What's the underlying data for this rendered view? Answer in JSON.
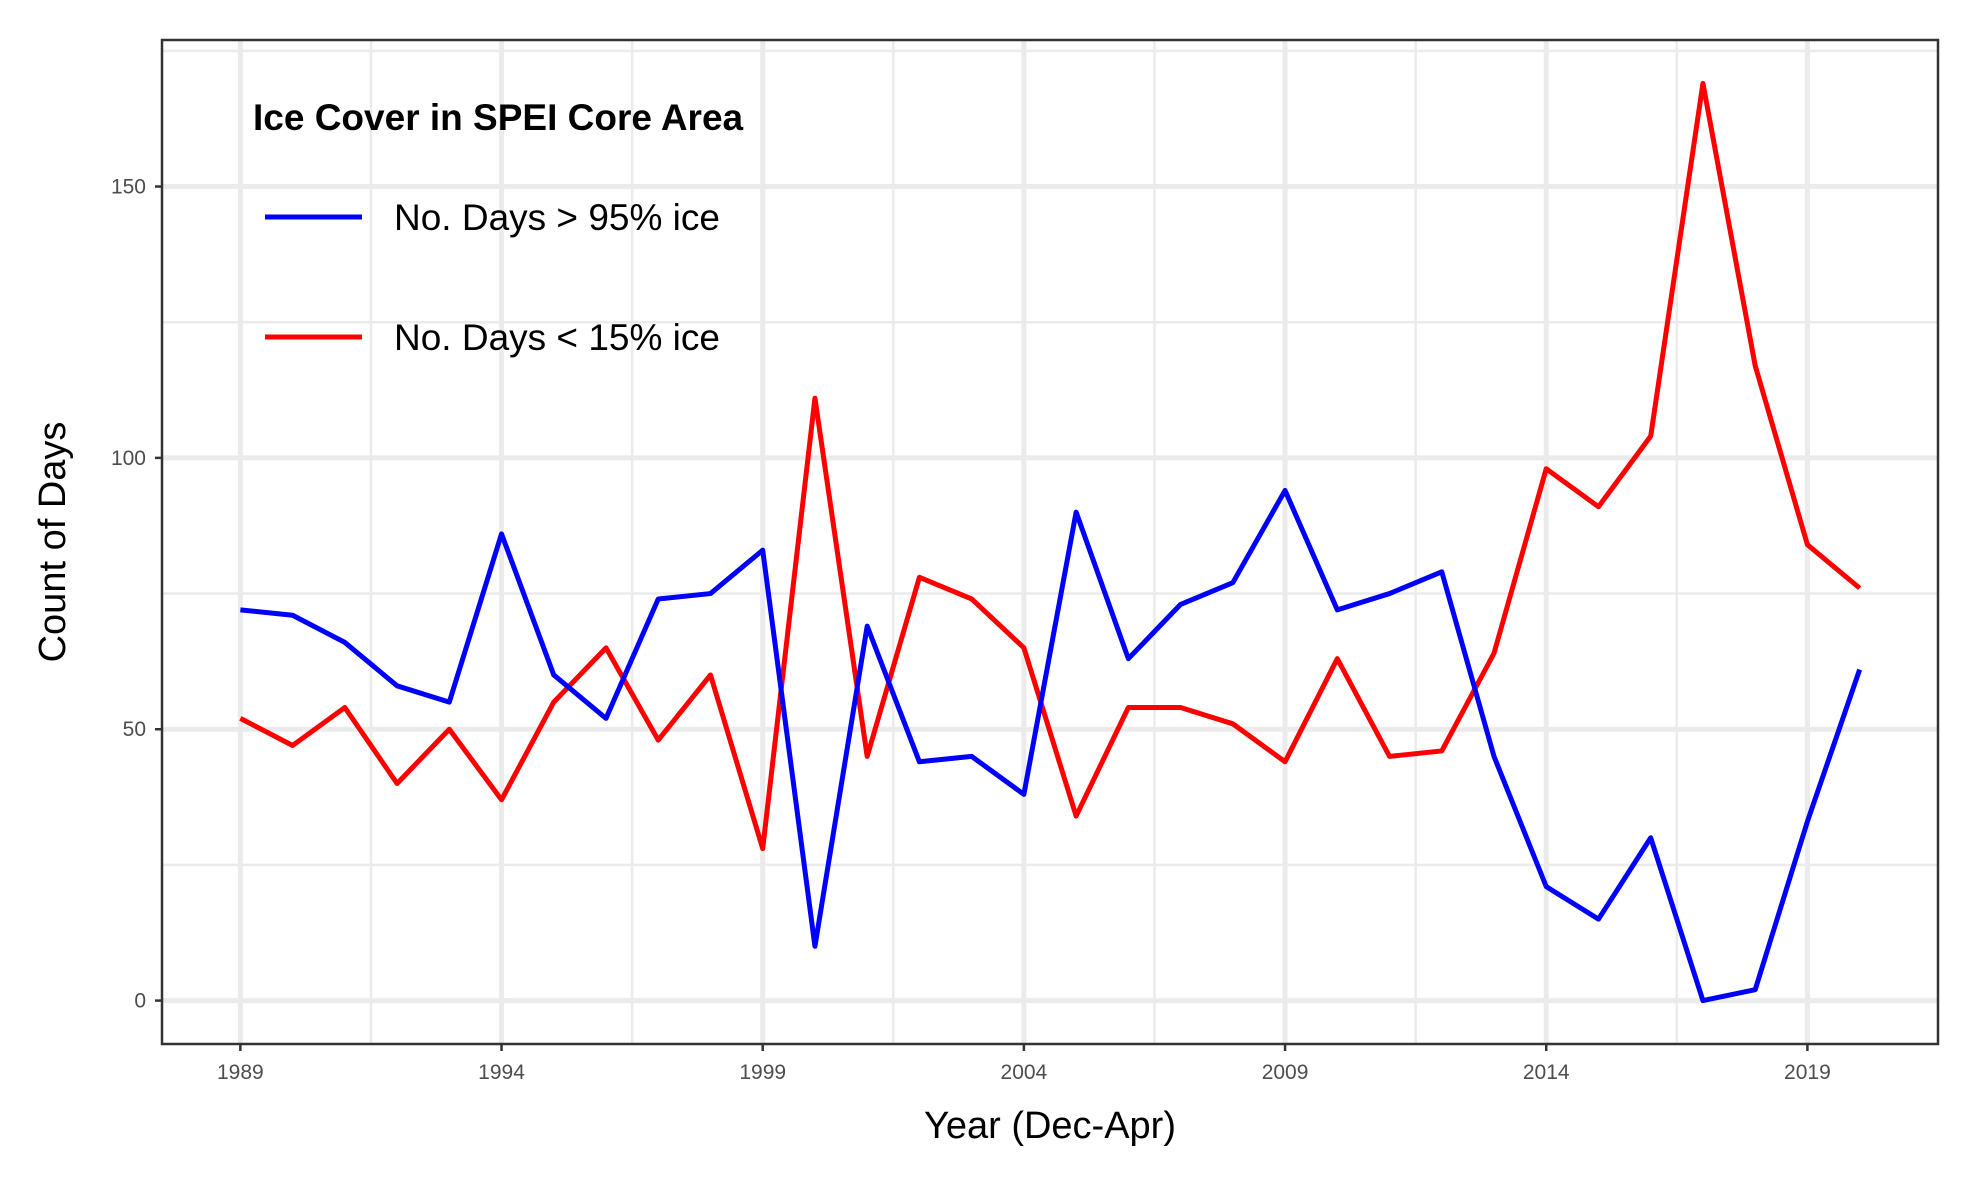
{
  "chart_data": {
    "type": "line",
    "title": "",
    "xlabel": "Year (Dec-Apr)",
    "ylabel": "Count of Days",
    "xlim": [
      1987.5,
      2021.5
    ],
    "ylim": [
      -8,
      177
    ],
    "x_ticks": [
      1989,
      1994,
      1999,
      2004,
      2009,
      2014,
      2019
    ],
    "x_tick_labels": [
      "1989",
      "1994",
      "1999",
      "2004",
      "2009",
      "2014",
      "2019"
    ],
    "y_ticks": [
      0,
      50,
      100,
      150
    ],
    "y_tick_labels": [
      "0",
      "50",
      "100",
      "150"
    ],
    "grid": true,
    "legend": {
      "title": "Ice Cover in SPEI Core Area",
      "position": "top-left"
    },
    "x": [
      1989,
      1990,
      1991,
      1992,
      1993,
      1994,
      1995,
      1996,
      1997,
      1998,
      1999,
      2000,
      2001,
      2002,
      2003,
      2004,
      2005,
      2006,
      2007,
      2008,
      2009,
      2010,
      2011,
      2012,
      2013,
      2014,
      2015,
      2016,
      2017,
      2018,
      2019,
      2020
    ],
    "series": [
      {
        "name": "No. Days > 95% ice",
        "color": "#0000ff",
        "values": [
          72,
          71,
          66,
          58,
          55,
          86,
          60,
          52,
          74,
          75,
          83,
          10,
          69,
          44,
          45,
          38,
          90,
          63,
          73,
          77,
          94,
          72,
          75,
          79,
          45,
          21,
          15,
          30,
          0,
          2,
          33,
          61
        ]
      },
      {
        "name": "No. Days < 15% ice",
        "color": "#ff0000",
        "values": [
          52,
          47,
          54,
          40,
          50,
          37,
          55,
          65,
          48,
          60,
          28,
          111,
          45,
          78,
          74,
          65,
          34,
          54,
          54,
          51,
          44,
          63,
          45,
          46,
          64,
          98,
          91,
          104,
          169,
          117,
          84,
          76
        ]
      }
    ]
  }
}
